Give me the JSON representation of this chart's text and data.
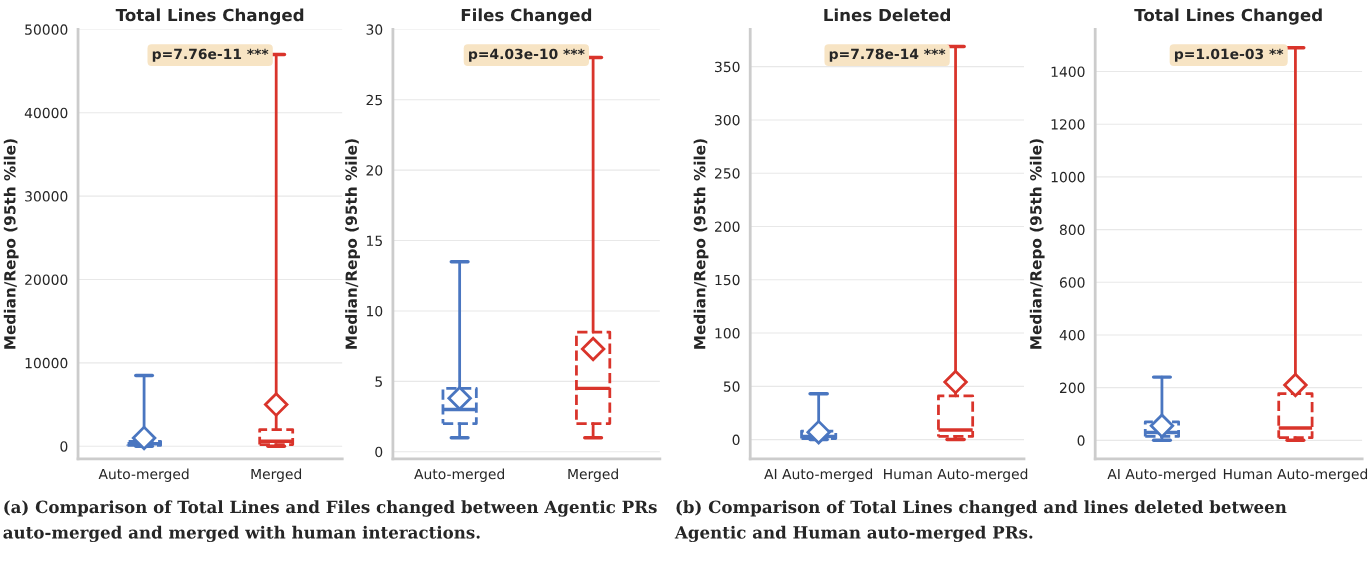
{
  "chart_data": [
    {
      "type": "box",
      "title": "Total Lines Changed",
      "ylabel": "Median/Repo (95th %ile)",
      "categories": [
        "Auto-merged",
        "Merged"
      ],
      "colors": [
        "#4a76c0",
        "#d9342b"
      ],
      "boxes": [
        {
          "low": 0,
          "q1": 100,
          "median": 300,
          "q3": 600,
          "high": 8500,
          "mean": 1000
        },
        {
          "low": 0,
          "q1": 200,
          "median": 600,
          "q3": 2000,
          "high": 47000,
          "mean": 5000
        }
      ],
      "ylim": [
        -1500,
        50000
      ],
      "yticks": [
        0,
        10000,
        20000,
        30000,
        40000,
        50000
      ],
      "grid": "y",
      "annotations": [
        "p=7.76e-11 ***",
        "(a) Comparison of Total Lines and Files changed between Agentic PRs",
        "auto-merged and merged with human interactions."
      ]
    },
    {
      "type": "box",
      "title": "Files Changed",
      "ylabel": "Median/Repo (95th %ile)",
      "categories": [
        "Auto-merged",
        "Merged"
      ],
      "colors": [
        "#4a76c0",
        "#d9342b"
      ],
      "boxes": [
        {
          "low": 1,
          "q1": 2,
          "median": 3,
          "q3": 4.5,
          "high": 13.5,
          "mean": 3.8
        },
        {
          "low": 1,
          "q1": 2,
          "median": 4.5,
          "q3": 8.5,
          "high": 28,
          "mean": 7.3
        }
      ],
      "ylim": [
        -0.5,
        30
      ],
      "yticks": [
        0,
        5,
        10,
        15,
        20,
        25,
        30
      ],
      "grid": "y",
      "annotations": [
        "p=4.03e-10 ***"
      ]
    },
    {
      "type": "box",
      "title": "Lines Deleted",
      "ylabel": "Median/Repo (95th %ile)",
      "categories": [
        "AI Auto-merged",
        "Human Auto-merged"
      ],
      "colors": [
        "#4a76c0",
        "#d9342b"
      ],
      "boxes": [
        {
          "low": 0,
          "q1": 1,
          "median": 3,
          "q3": 8,
          "high": 43,
          "mean": 7
        },
        {
          "low": 0,
          "q1": 3,
          "median": 9,
          "q3": 41,
          "high": 369,
          "mean": 54
        }
      ],
      "ylim": [
        -18,
        385
      ],
      "yticks": [
        0,
        50,
        100,
        150,
        200,
        250,
        300,
        350
      ],
      "grid": "y",
      "annotations": [
        "p=7.78e-14 ***",
        "(b) Comparison of Total Lines changed and lines deleted between",
        "Agentic and Human auto-merged PRs."
      ]
    },
    {
      "type": "box",
      "title": "Total Lines Changed",
      "ylabel": "Median/Repo (95th %ile)",
      "categories": [
        "AI Auto-merged",
        "Human Auto-merged"
      ],
      "colors": [
        "#4a76c0",
        "#d9342b"
      ],
      "boxes": [
        {
          "low": 0,
          "q1": 15,
          "median": 30,
          "q3": 70,
          "high": 240,
          "mean": 55
        },
        {
          "low": 0,
          "q1": 10,
          "median": 47,
          "q3": 177,
          "high": 1490,
          "mean": 210
        }
      ],
      "ylim": [
        -70,
        1560
      ],
      "yticks": [
        0,
        200,
        400,
        600,
        800,
        1000,
        1200,
        1400
      ],
      "grid": "y",
      "annotations": [
        "p=1.01e-03 **"
      ]
    }
  ]
}
